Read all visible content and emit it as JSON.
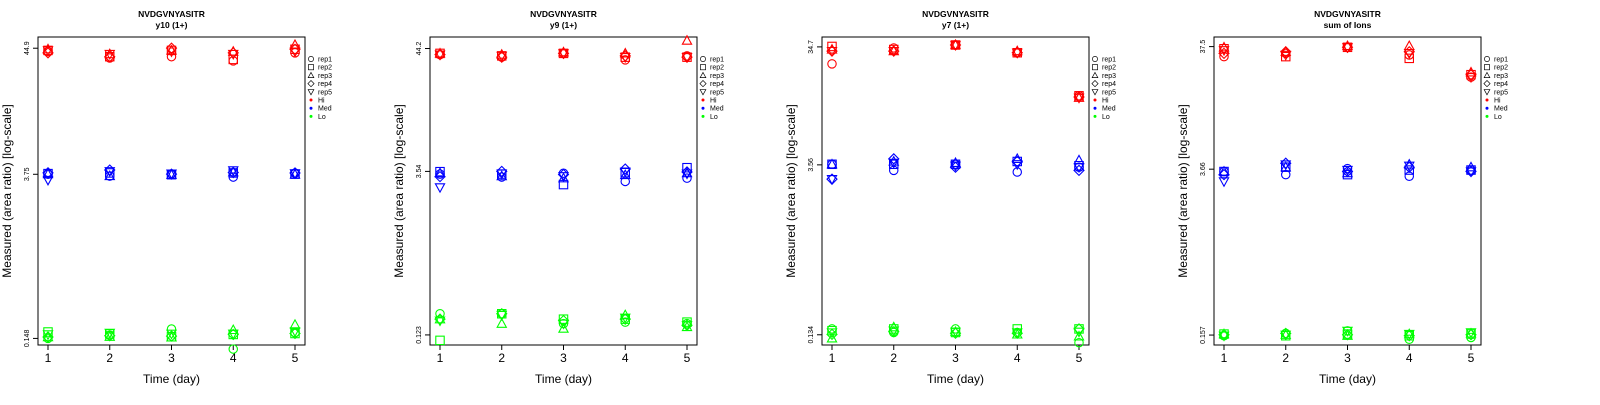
{
  "legend": {
    "replicates": [
      "rep1",
      "rep2",
      "rep3",
      "rep4",
      "rep5"
    ],
    "levels": [
      {
        "label": "Hi",
        "color": "#ff0000"
      },
      {
        "label": "Med",
        "color": "#0000ff"
      },
      {
        "label": "Lo",
        "color": "#00ff00"
      }
    ]
  },
  "chart_data": [
    {
      "type": "scatter",
      "title": "NVDGVNYASITR",
      "subtitle": "y10 (1+)",
      "xlabel": "Time (day)",
      "ylabel": "Measured (area ratio) [log-scale]",
      "x_ticks": [
        "1",
        "2",
        "3",
        "4",
        "5"
      ],
      "y_ticks": [
        "0.148",
        "3.75",
        "44.9"
      ],
      "y_scale": "log",
      "ylim": [
        0.13,
        56
      ],
      "series": [
        {
          "name": "Hi",
          "color": "#ff0000",
          "values": [
            [
              42,
              37,
              38,
              35,
              41
            ],
            [
              43,
              38,
              43,
              36,
              44
            ],
            [
              44,
              40,
              43,
              42,
              48
            ],
            [
              41,
              38,
              45,
              41,
              44
            ],
            [
              43,
              40,
              42,
              40,
              42
            ]
          ]
        },
        {
          "name": "Med",
          "color": "#0000ff",
          "values": [
            [
              3.75,
              3.62,
              3.78,
              3.55,
              3.84
            ],
            [
              3.8,
              3.85,
              3.72,
              3.85,
              3.76
            ],
            [
              3.77,
              3.63,
              3.71,
              3.91,
              3.74
            ],
            [
              3.86,
              4.08,
              3.76,
              3.88,
              3.85
            ],
            [
              3.35,
              3.98,
              3.8,
              4.05,
              3.82
            ]
          ]
        },
        {
          "name": "Lo",
          "color": "#00ff00",
          "values": [
            [
              0.148,
              0.158,
              0.178,
              0.12,
              0.166
            ],
            [
              0.168,
              0.162,
              0.153,
              0.16,
              0.163
            ],
            [
              0.152,
              0.153,
              0.151,
              0.175,
              0.194
            ],
            [
              0.152,
              0.156,
              0.155,
              0.16,
              0.163
            ],
            [
              0.16,
              0.165,
              0.162,
              0.162,
              0.17
            ]
          ]
        }
      ]
    },
    {
      "type": "scatter",
      "title": "NVDGVNYASITR",
      "subtitle": "y9 (1+)",
      "xlabel": "Time (day)",
      "ylabel": "Measured (area ratio) [log-scale]",
      "x_ticks": [
        "1",
        "2",
        "3",
        "4",
        "5"
      ],
      "y_ticks": [
        "0.123",
        "3.54",
        "44.2"
      ],
      "y_scale": "log",
      "ylim": [
        0.1,
        56
      ],
      "series": [
        {
          "name": "Hi",
          "color": "#ff0000",
          "values": [
            [
              39,
              37,
              40,
              35,
              38
            ],
            [
              40,
              38,
              40,
              37,
              37
            ],
            [
              40,
              39,
              41,
              40,
              52
            ],
            [
              39,
              37,
              40,
              38,
              37
            ],
            [
              39,
              38,
              40,
              37,
              37
            ]
          ]
        },
        {
          "name": "Med",
          "color": "#0000ff",
          "values": [
            [
              3.35,
              3.15,
              3.41,
              2.88,
              3.08
            ],
            [
              3.52,
              3.35,
              2.7,
              3.45,
              3.82
            ],
            [
              3.42,
              3.21,
              3.08,
              3.29,
              3.42
            ],
            [
              3.18,
              3.54,
              3.32,
              3.72,
              3.5
            ],
            [
              2.55,
              3.38,
              3.2,
              3.52,
              3.38
            ]
          ]
        },
        {
          "name": "Lo",
          "color": "#00ff00",
          "values": [
            [
              0.19,
              0.19,
              0.155,
              0.16,
              0.155
            ],
            [
              0.11,
              0.19,
              0.17,
              0.17,
              0.16
            ],
            [
              0.17,
              0.155,
              0.14,
              0.185,
              0.145
            ],
            [
              0.17,
              0.19,
              0.165,
              0.17,
              0.15
            ],
            [
              0.165,
              0.185,
              0.155,
              0.175,
              0.15
            ]
          ]
        }
      ]
    },
    {
      "type": "scatter",
      "title": "NVDGVNYASITR",
      "subtitle": "y7 (1+)",
      "xlabel": "Time (day)",
      "ylabel": "Measured (area ratio) [log-scale]",
      "x_ticks": [
        "1",
        "2",
        "3",
        "4",
        "5"
      ],
      "y_ticks": [
        "0.134",
        "3.56",
        "34.7"
      ],
      "y_scale": "log",
      "ylim": [
        0.11,
        42
      ],
      "series": [
        {
          "name": "Hi",
          "color": "#ff0000",
          "values": [
            [
              25,
              34,
              36,
              31,
              13.5
            ],
            [
              35,
              33,
              36,
              31,
              13.5
            ],
            [
              33,
              32,
              36,
              32,
              13.0
            ],
            [
              32,
              32,
              36,
              31,
              13.2
            ],
            [
              32,
              32,
              36,
              31,
              13.0
            ]
          ]
        },
        {
          "name": "Med",
          "color": "#0000ff",
          "values": [
            [
              3.6,
              3.2,
              3.6,
              3.1,
              3.4
            ],
            [
              3.6,
              3.6,
              3.6,
              3.8,
              3.5
            ],
            [
              3.6,
              3.8,
              3.7,
              4.0,
              3.9
            ],
            [
              2.7,
              4.0,
              3.4,
              3.8,
              3.2
            ],
            [
              2.7,
              3.7,
              3.5,
              3.6,
              3.4
            ]
          ]
        },
        {
          "name": "Lo",
          "color": "#00ff00",
          "values": [
            [
              0.15,
              0.14,
              0.15,
              0.14,
              0.115
            ],
            [
              0.145,
              0.15,
              0.14,
              0.15,
              0.15
            ],
            [
              0.125,
              0.155,
              0.142,
              0.135,
              0.13
            ],
            [
              0.135,
              0.142,
              0.138,
              0.138,
              0.15
            ],
            [
              0.14,
              0.145,
              0.142,
              0.14,
              0.142
            ]
          ]
        }
      ]
    },
    {
      "type": "scatter",
      "title": "NVDGVNYASITR",
      "subtitle": "sum of Ions",
      "xlabel": "Time (day)",
      "ylabel": "Measured (area ratio) [log-scale]",
      "x_ticks": [
        "1",
        "2",
        "3",
        "4",
        "5"
      ],
      "y_ticks": [
        "0.157",
        "3.66",
        "37.5"
      ],
      "y_scale": "log",
      "ylim": [
        0.13,
        45
      ],
      "series": [
        {
          "name": "Hi",
          "color": "#ff0000",
          "values": [
            [
              31,
              33,
              37,
              32,
              21
            ],
            [
              36,
              31,
              37,
              30,
              22
            ],
            [
              37,
              34,
              38,
              38,
              23
            ],
            [
              33,
              34,
              37,
              34,
              22
            ],
            [
              35,
              32,
              37,
              33,
              21
            ]
          ]
        },
        {
          "name": "Med",
          "color": "#0000ff",
          "values": [
            [
              3.5,
              3.3,
              3.7,
              3.2,
              3.6
            ],
            [
              3.5,
              3.8,
              3.3,
              3.6,
              3.6
            ],
            [
              3.5,
              3.8,
              3.4,
              4.0,
              3.8
            ],
            [
              3.3,
              4.1,
              3.5,
              3.8,
              3.5
            ],
            [
              2.9,
              4.0,
              3.6,
              3.9,
              3.5
            ]
          ]
        },
        {
          "name": "Lo",
          "color": "#00ff00",
          "values": [
            [
              0.155,
              0.162,
              0.17,
              0.145,
              0.15
            ],
            [
              0.16,
              0.155,
              0.16,
              0.155,
              0.16
            ],
            [
              0.16,
              0.158,
              0.155,
              0.16,
              0.162
            ],
            [
              0.158,
              0.162,
              0.158,
              0.155,
              0.158
            ],
            [
              0.155,
              0.158,
              0.17,
              0.16,
              0.165
            ]
          ]
        }
      ]
    }
  ]
}
